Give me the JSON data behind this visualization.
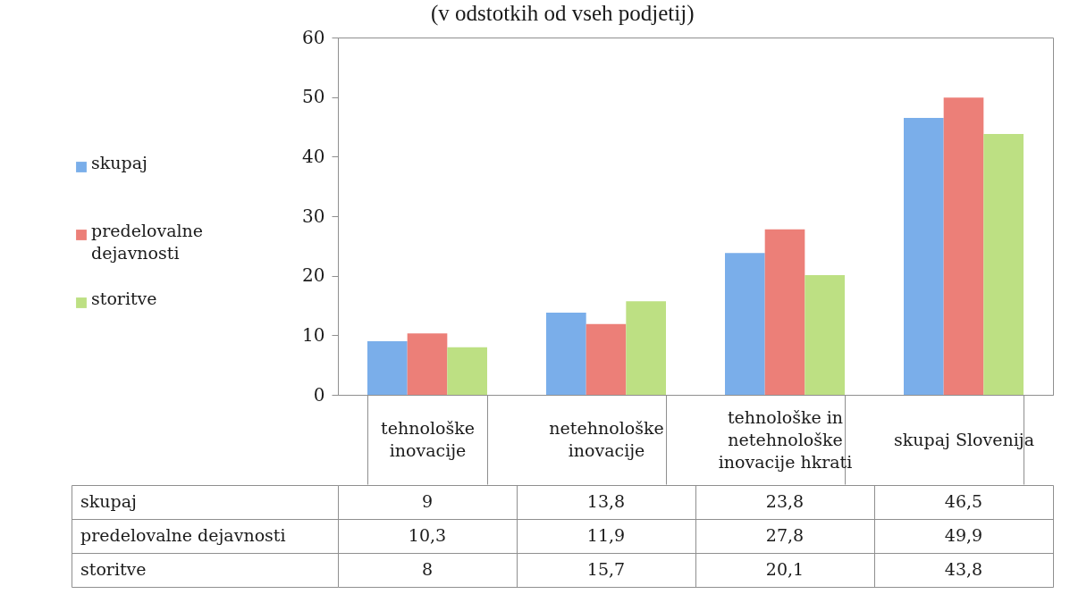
{
  "chart_data": {
    "type": "bar",
    "title": "(v odstotkih od vseh podjetij)",
    "categories": [
      "tehnološke inovacije",
      "netehnološke inovacije",
      "tehnološke in netehnološke inovacije hkrati",
      "skupaj Slovenija"
    ],
    "series": [
      {
        "name": "skupaj",
        "color": "#7aaeea",
        "values": [
          9,
          13.8,
          23.8,
          46.5
        ],
        "value_labels": [
          "9",
          "13,8",
          "23,8",
          "46,5"
        ]
      },
      {
        "name": "predelovalne dejavnosti",
        "color": "#ec7f78",
        "values": [
          10.3,
          11.9,
          27.8,
          49.9
        ],
        "value_labels": [
          "10,3",
          "11,9",
          "27,8",
          "49,9"
        ]
      },
      {
        "name": "storitve",
        "color": "#bde083",
        "values": [
          8,
          15.7,
          20.1,
          43.8
        ],
        "value_labels": [
          "8",
          "15,7",
          "20,1",
          "43,8"
        ]
      }
    ],
    "ylim": [
      0,
      60
    ],
    "yticks": [
      0,
      10,
      20,
      30,
      40,
      50,
      60
    ],
    "legend": "left"
  }
}
